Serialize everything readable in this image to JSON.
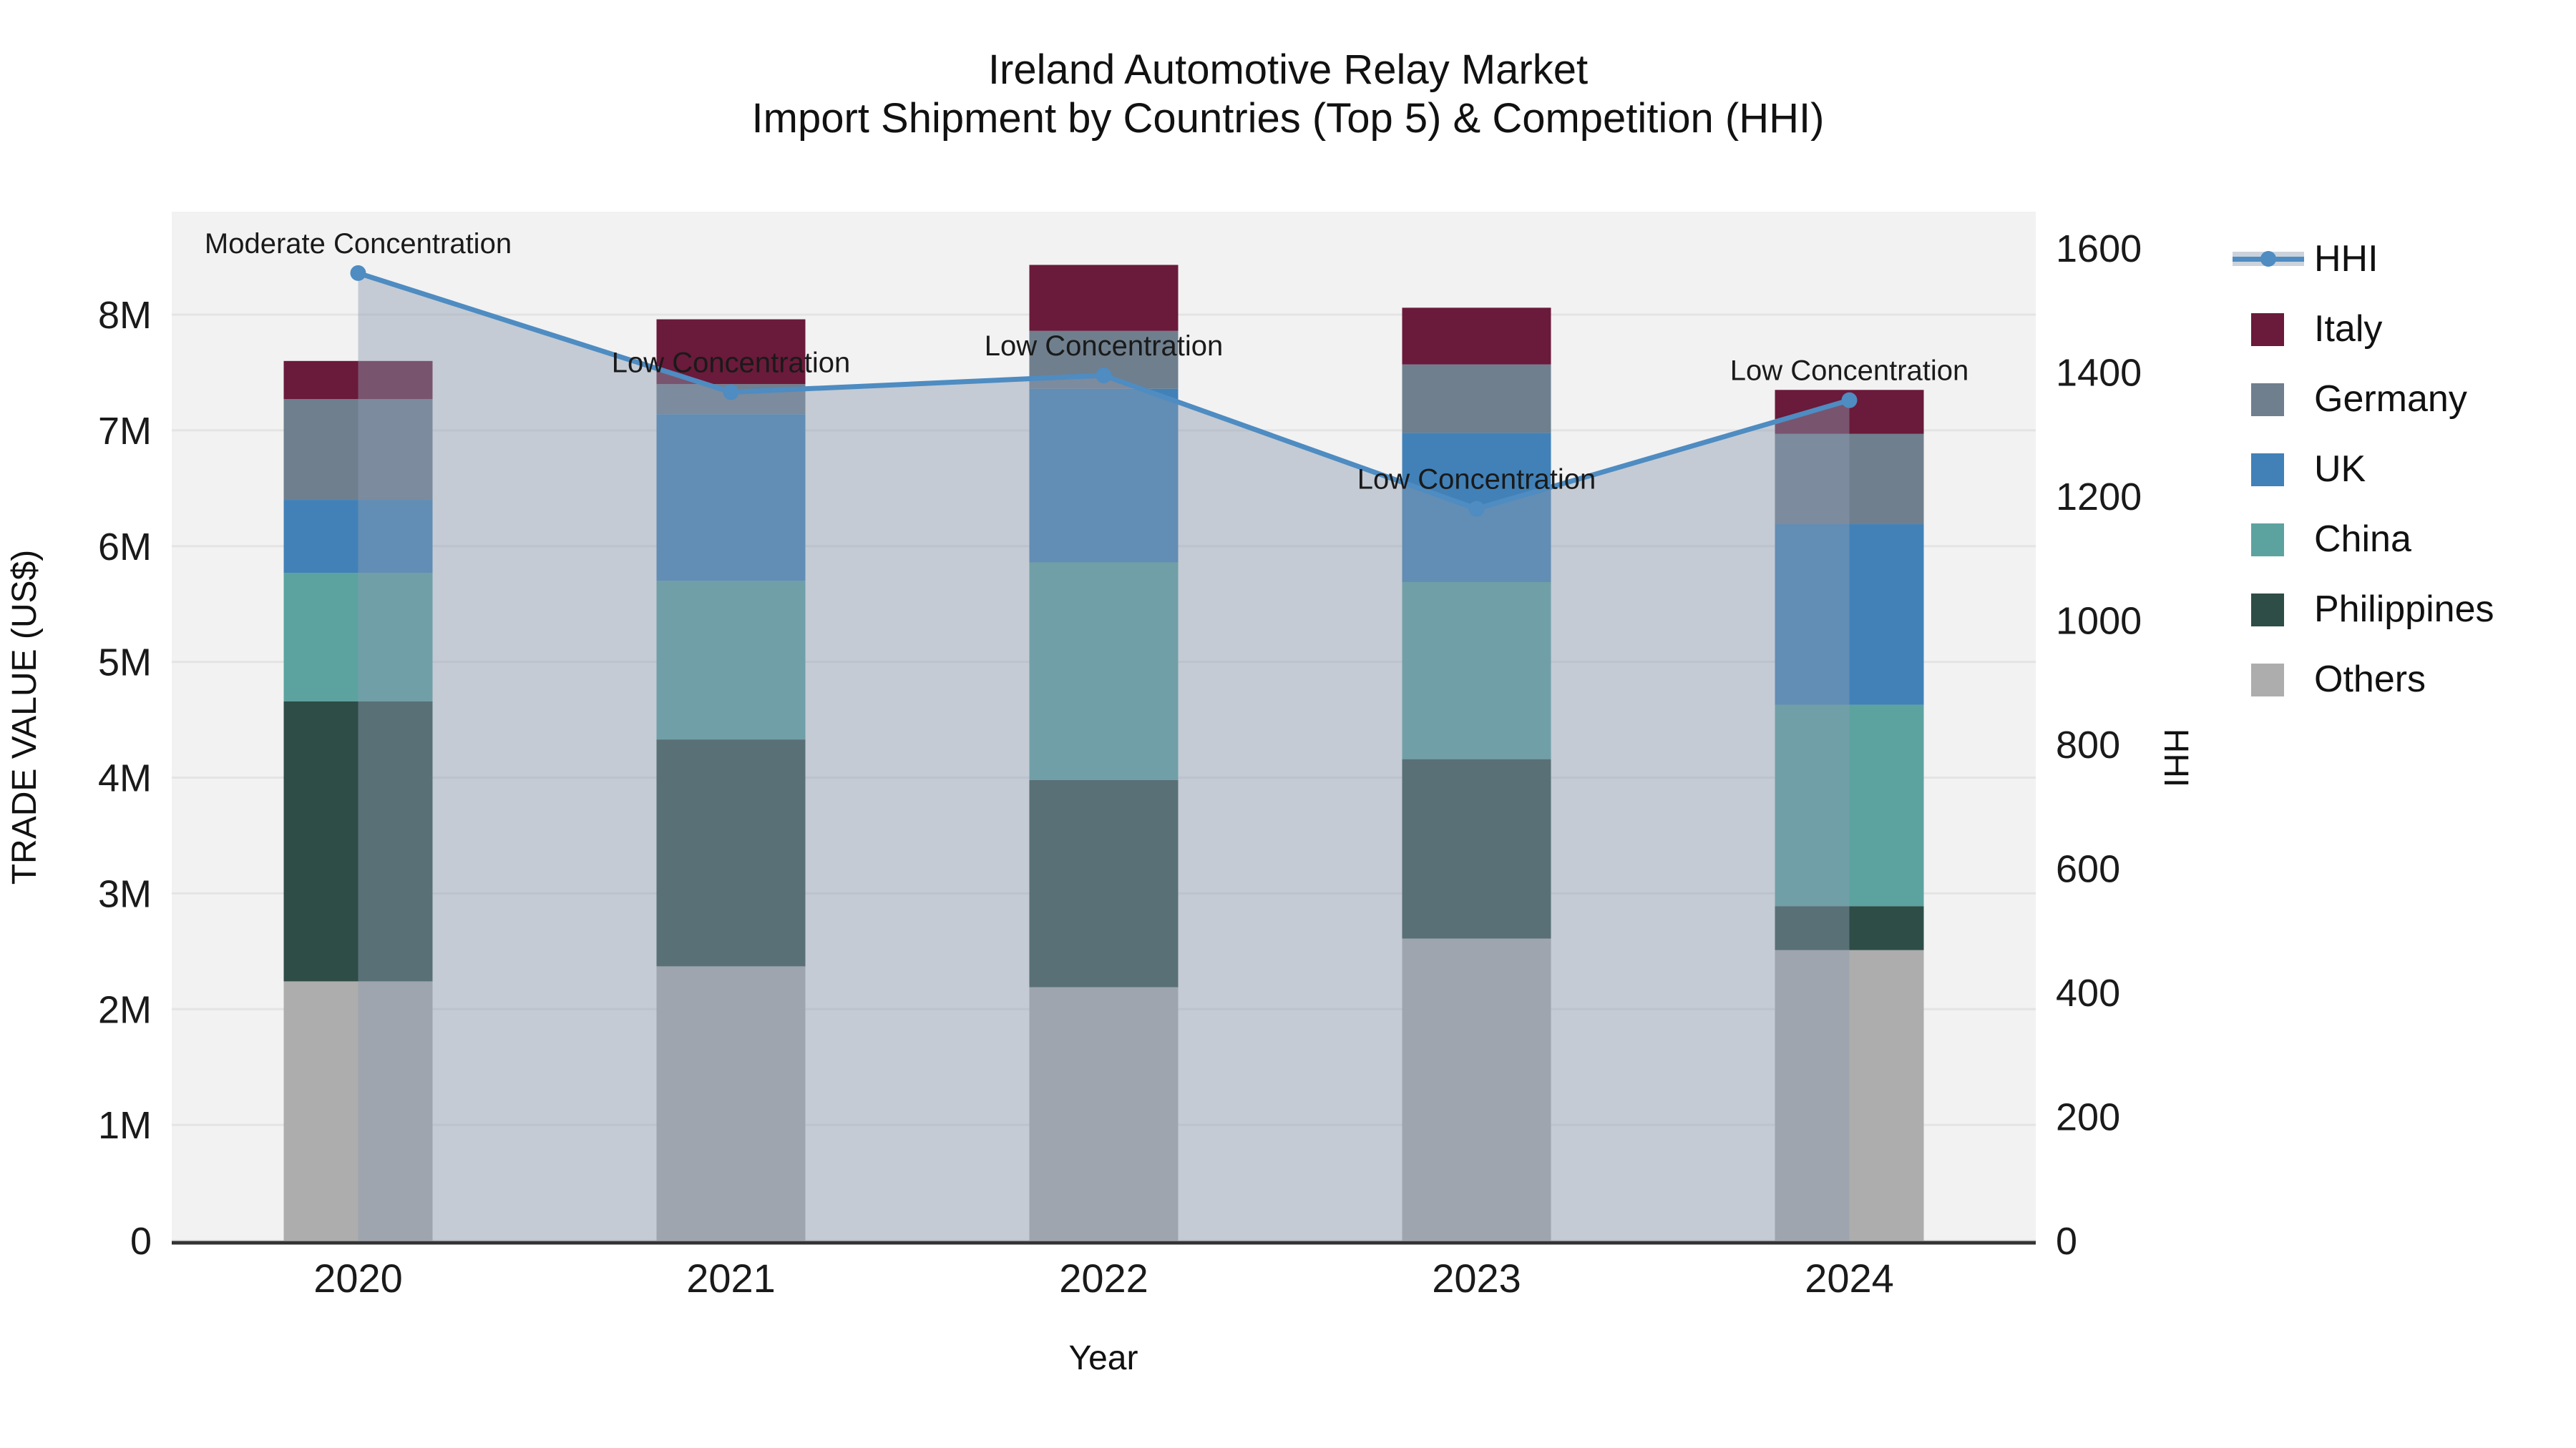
{
  "title": {
    "line1": "Ireland Automotive Relay Market",
    "line2": "Import Shipment by Countries (Top 5) & Competition (HHI)"
  },
  "chart_data": {
    "type": "bar",
    "stacked": true,
    "grid": "horizontal 1M gridlines on",
    "legend_position": "right",
    "categories": [
      "2020",
      "2021",
      "2022",
      "2023",
      "2024"
    ],
    "value_unit": "million US$",
    "series": [
      {
        "name": "Italy",
        "color": "#6A1A3A",
        "values": [
          0.33,
          0.56,
          0.57,
          0.49,
          0.38
        ]
      },
      {
        "name": "Germany",
        "color": "#6F7F8E",
        "values": [
          0.87,
          0.26,
          0.5,
          0.59,
          0.78
        ]
      },
      {
        "name": "UK",
        "color": "#4181B8",
        "values": [
          0.63,
          1.44,
          1.5,
          1.29,
          1.56
        ]
      },
      {
        "name": "China",
        "color": "#5CA3A0",
        "values": [
          1.11,
          1.37,
          1.88,
          1.53,
          1.74
        ]
      },
      {
        "name": "Philippines",
        "color": "#2E4D47",
        "values": [
          2.42,
          1.96,
          1.79,
          1.55,
          0.38
        ]
      },
      {
        "name": "Others",
        "color": "#ADADAD",
        "values": [
          2.24,
          2.37,
          2.19,
          2.61,
          2.51
        ]
      }
    ],
    "stack_totals": [
      7.6,
      7.96,
      8.43,
      8.06,
      7.35
    ],
    "line_series": {
      "name": "HHI",
      "color": "#4E8CC2",
      "area_fill_color": "rgba(140,155,175,0.45)",
      "values": [
        1560,
        1368,
        1395,
        1180,
        1355
      ]
    },
    "annotations": [
      {
        "category": "2020",
        "text": "Moderate Concentration"
      },
      {
        "category": "2021",
        "text": "Low Concentration"
      },
      {
        "category": "2022",
        "text": "Low Concentration"
      },
      {
        "category": "2023",
        "text": "Low Concentration"
      },
      {
        "category": "2024",
        "text": "Low Concentration"
      }
    ],
    "axes": {
      "left": {
        "title": "TRADE VALUE (US$)",
        "ticks": [
          "0",
          "1M",
          "2M",
          "3M",
          "4M",
          "5M",
          "6M",
          "7M",
          "8M"
        ],
        "tick_values": [
          0,
          1,
          2,
          3,
          4,
          5,
          6,
          7,
          8
        ],
        "range": [
          0,
          8.89
        ]
      },
      "right": {
        "title": "HHI",
        "ticks": [
          "0",
          "200",
          "400",
          "600",
          "800",
          "1000",
          "1200",
          "1400",
          "1600"
        ],
        "tick_values": [
          0,
          200,
          400,
          600,
          800,
          1000,
          1200,
          1400,
          1600
        ],
        "range": [
          0,
          1659
        ]
      },
      "x": {
        "title": "Year"
      }
    },
    "plot_background": "#f2f2f2",
    "gridline_color": "#e4e4e4"
  },
  "legend": {
    "items": [
      {
        "label": "HHI",
        "type": "line",
        "color": "#4E8CC2"
      },
      {
        "label": "Italy",
        "type": "square",
        "color": "#6A1A3A"
      },
      {
        "label": "Germany",
        "type": "square",
        "color": "#6F7F8E"
      },
      {
        "label": "UK",
        "type": "square",
        "color": "#4181B8"
      },
      {
        "label": "China",
        "type": "square",
        "color": "#5CA3A0"
      },
      {
        "label": "Philippines",
        "type": "square",
        "color": "#2E4D47"
      },
      {
        "label": "Others",
        "type": "square",
        "color": "#ADADAD"
      }
    ]
  }
}
